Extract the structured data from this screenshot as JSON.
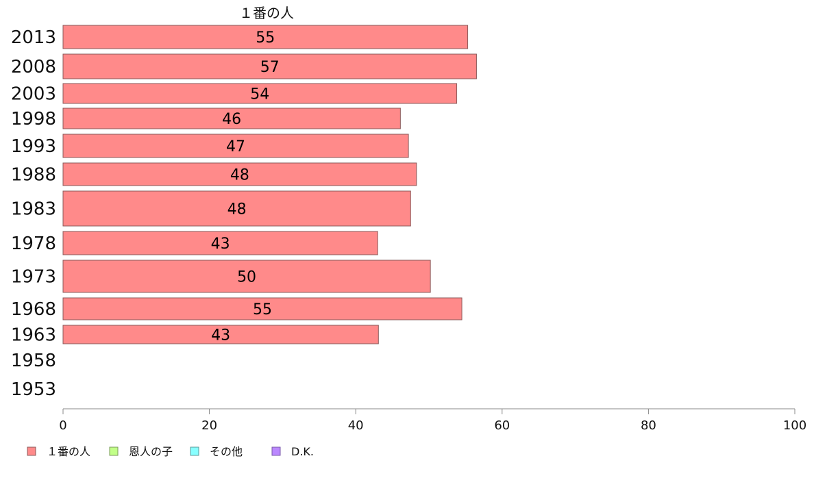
{
  "colors": {
    "bar_fill": "#ff8a8a",
    "bar_stroke": "#8a5a5a",
    "axis": "#888888",
    "legend": [
      "#ff8a8a",
      "#c2ff88",
      "#88ffff",
      "#bb88ff"
    ],
    "legend_stroke": [
      "#8a5a5a",
      "#7a9a5a",
      "#5a9a9a",
      "#7a5aaa"
    ]
  },
  "chart_data": {
    "type": "bar",
    "orientation": "horizontal",
    "title": "１番の人",
    "categories": [
      "2013",
      "2008",
      "2003",
      "1998",
      "1993",
      "1988",
      "1983",
      "1978",
      "1973",
      "1968",
      "1963",
      "1958",
      "1953"
    ],
    "series": [
      {
        "name": "１番の人",
        "values": [
          55.3,
          56.5,
          53.8,
          46.1,
          47.2,
          48.3,
          47.5,
          43.0,
          50.2,
          54.5,
          43.1,
          null,
          null
        ],
        "labels": [
          "55",
          "57",
          "54",
          "46",
          "47",
          "48",
          "48",
          "43",
          "50",
          "55",
          "43",
          "",
          ""
        ]
      }
    ],
    "xlim": [
      0,
      100
    ],
    "xticks": [
      0,
      20,
      40,
      60,
      80,
      100
    ],
    "xtick_labels": [
      "0",
      "20",
      "40",
      "60",
      "80",
      "100"
    ],
    "grid": false,
    "legend_position": "bottom-left",
    "legend": [
      "１番の人",
      "恩人の子",
      "その他",
      "D.K."
    ]
  }
}
